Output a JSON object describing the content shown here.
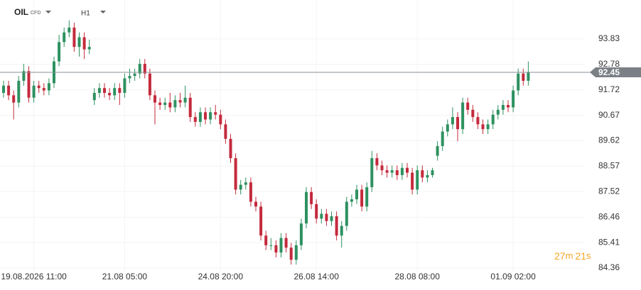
{
  "header": {
    "symbol": "OIL",
    "instrument_type": "CFD",
    "interval": "H1"
  },
  "countdown": {
    "minutes": "27",
    "minutes_unit": "m",
    "seconds": "21",
    "seconds_unit": "s"
  },
  "chart_data": {
    "type": "candlestick",
    "up_color": "#2e9160",
    "down_color": "#c42a3c",
    "grid": true,
    "categories": [
      null,
      null,
      null,
      null,
      null,
      null,
      "19.08.2026 11:00",
      null,
      null,
      null,
      null,
      null,
      null,
      null,
      null,
      null,
      null,
      null,
      null,
      null,
      null,
      null,
      null,
      null,
      "21.08 05:00",
      null,
      null,
      null,
      null,
      null,
      null,
      null,
      null,
      null,
      null,
      null,
      null,
      null,
      null,
      null,
      null,
      null,
      null,
      "24.08 20:00",
      null,
      null,
      null,
      null,
      null,
      null,
      null,
      null,
      null,
      null,
      null,
      null,
      null,
      null,
      null,
      null,
      null,
      null,
      "26.08 14:00",
      null,
      null,
      null,
      null,
      null,
      null,
      null,
      null,
      null,
      null,
      null,
      null,
      null,
      null,
      null,
      null,
      null,
      null,
      null,
      "28.08 08:00",
      null,
      null,
      null,
      null,
      null,
      null,
      null,
      null,
      null,
      null,
      null,
      null,
      null,
      null,
      null,
      null,
      null,
      null,
      "01.09 02:00",
      null,
      null,
      null
    ],
    "open": [
      91.6,
      91.9,
      91.5,
      91.2,
      92.1,
      92.5,
      91.4,
      91.9,
      91.8,
      91.7,
      92.0,
      92.9,
      93.7,
      94.1,
      94.3,
      93.5,
      93.9,
      93.4,
      91.3,
      91.6,
      91.8,
      91.6,
      91.5,
      91.8,
      91.6,
      92.2,
      92.3,
      92.4,
      92.8,
      92.4,
      91.5,
      91.2,
      91.1,
      91.2,
      91.0,
      91.3,
      91.2,
      91.4,
      90.6,
      90.4,
      90.8,
      90.5,
      90.8,
      90.7,
      90.3,
      89.7,
      88.9,
      87.6,
      87.8,
      87.9,
      87.1,
      86.9,
      85.7,
      85.3,
      85.3,
      85.0,
      85.6,
      85.2,
      84.7,
      85.3,
      86.2,
      87.5,
      87.0,
      86.4,
      86.6,
      86.3,
      86.5,
      85.7,
      86.1,
      87.1,
      87.2,
      87.6,
      86.9,
      87.7,
      88.9,
      88.6,
      88.4,
      88.3,
      88.4,
      88.2,
      88.5,
      88.3,
      87.6,
      88.4,
      88.1,
      88.2,
      89.0,
      89.4,
      90.0,
      90.3,
      90.6,
      90.1,
      91.2,
      90.9,
      90.6,
      90.3,
      90.1,
      90.3,
      90.7,
      90.9,
      91.1,
      91.0,
      91.7,
      92.4,
      92.1
    ],
    "high": [
      92.1,
      92.1,
      91.7,
      92.3,
      92.8,
      92.7,
      92.1,
      92.1,
      92.0,
      92.2,
      93.1,
      94.0,
      94.3,
      94.6,
      94.5,
      94.1,
      94.1,
      93.8,
      91.8,
      92.0,
      92.0,
      91.8,
      92.0,
      92.0,
      92.4,
      92.6,
      92.6,
      93.0,
      93.0,
      92.6,
      91.7,
      91.4,
      91.4,
      91.6,
      91.5,
      91.6,
      91.9,
      91.6,
      90.8,
      91.0,
      91.0,
      91.0,
      91.1,
      90.9,
      90.5,
      89.9,
      89.1,
      88.0,
      88.1,
      88.1,
      87.3,
      87.1,
      85.9,
      85.6,
      85.5,
      85.8,
      85.8,
      85.4,
      85.5,
      86.4,
      87.7,
      87.7,
      87.2,
      86.8,
      86.8,
      86.7,
      86.7,
      86.3,
      87.3,
      87.4,
      87.8,
      87.8,
      87.9,
      89.2,
      89.1,
      88.8,
      88.6,
      88.6,
      88.6,
      88.7,
      88.7,
      88.5,
      88.6,
      88.6,
      88.4,
      88.5,
      89.6,
      90.2,
      90.5,
      91.0,
      90.8,
      91.4,
      91.4,
      91.1,
      90.8,
      90.5,
      90.5,
      90.9,
      91.1,
      91.3,
      91.3,
      91.9,
      92.6,
      92.6,
      92.9
    ],
    "low": [
      91.4,
      91.3,
      90.5,
      91.0,
      91.9,
      91.2,
      91.2,
      91.6,
      91.5,
      91.5,
      91.8,
      92.7,
      93.5,
      93.9,
      93.3,
      93.1,
      93.0,
      93.2,
      91.1,
      91.4,
      91.4,
      91.3,
      91.3,
      91.1,
      91.4,
      92.0,
      92.1,
      92.2,
      92.2,
      91.3,
      90.3,
      90.9,
      90.9,
      90.8,
      90.8,
      91.0,
      91.0,
      90.4,
      90.2,
      90.2,
      90.3,
      90.3,
      90.5,
      90.1,
      89.5,
      88.7,
      87.4,
      87.4,
      87.6,
      86.9,
      86.7,
      85.5,
      85.1,
      85.1,
      84.8,
      84.8,
      85.0,
      84.5,
      84.5,
      85.1,
      86.0,
      86.8,
      86.2,
      86.2,
      86.1,
      86.1,
      85.5,
      85.2,
      85.9,
      86.9,
      87.0,
      86.7,
      86.7,
      87.5,
      88.4,
      88.2,
      88.1,
      88.1,
      88.0,
      88.0,
      88.1,
      87.4,
      87.4,
      87.9,
      87.9,
      88.1,
      88.8,
      89.2,
      89.8,
      90.1,
      89.6,
      89.9,
      90.7,
      90.4,
      90.1,
      89.9,
      89.9,
      90.1,
      90.5,
      90.7,
      90.8,
      90.8,
      91.5,
      91.9,
      91.9
    ],
    "close": [
      91.9,
      91.5,
      91.2,
      92.1,
      92.5,
      91.4,
      91.9,
      91.8,
      91.7,
      92.0,
      92.9,
      93.7,
      94.1,
      94.3,
      93.5,
      93.9,
      93.4,
      93.5,
      91.6,
      91.8,
      91.6,
      91.5,
      91.8,
      91.6,
      92.2,
      92.3,
      92.4,
      92.8,
      92.4,
      91.5,
      91.2,
      91.1,
      91.2,
      91.0,
      91.3,
      91.2,
      91.4,
      90.6,
      90.4,
      90.8,
      90.5,
      90.8,
      90.7,
      90.3,
      89.7,
      88.9,
      87.6,
      87.8,
      87.9,
      87.1,
      86.9,
      85.7,
      85.3,
      85.3,
      85.0,
      85.6,
      85.2,
      84.7,
      85.3,
      86.2,
      87.5,
      87.0,
      86.4,
      86.6,
      86.3,
      86.5,
      85.7,
      86.1,
      87.1,
      87.2,
      87.6,
      86.9,
      87.7,
      88.9,
      88.6,
      88.4,
      88.3,
      88.4,
      88.2,
      88.5,
      88.3,
      87.6,
      88.4,
      88.1,
      88.2,
      88.4,
      89.4,
      90.0,
      90.3,
      90.6,
      90.1,
      91.2,
      90.9,
      90.6,
      90.3,
      90.1,
      90.3,
      90.7,
      90.9,
      91.1,
      91.0,
      91.7,
      92.4,
      92.1,
      92.45
    ],
    "current_price": 92.45,
    "ylim": [
      83.86,
      95.44
    ],
    "yticks": [
      93.83,
      92.78,
      91.72,
      90.67,
      89.62,
      88.57,
      87.52,
      86.46,
      85.41,
      84.36
    ]
  }
}
